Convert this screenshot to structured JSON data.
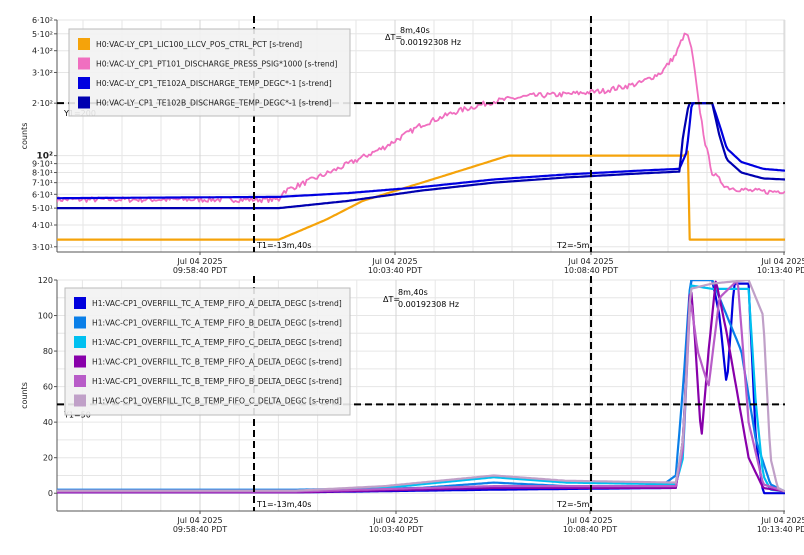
{
  "chart_data": [
    {
      "type": "line",
      "ylabel": "counts",
      "yscale": "log",
      "ylim": [
        28,
        600
      ],
      "grid": true,
      "legend_position": "top-left",
      "y_ticks": [
        {
          "v": 30,
          "label": "3·10¹"
        },
        {
          "v": 40,
          "label": "4·10¹"
        },
        {
          "v": 50,
          "label": "5·10¹"
        },
        {
          "v": 60,
          "label": "6·10¹"
        },
        {
          "v": 70,
          "label": "7·10¹"
        },
        {
          "v": 80,
          "label": "8·10¹"
        },
        {
          "v": 90,
          "label": "9·10¹"
        },
        {
          "v": 100,
          "label": "10²"
        },
        {
          "v": 200,
          "label": "2·10²"
        },
        {
          "v": 300,
          "label": "3·10²"
        },
        {
          "v": 400,
          "label": "4·10²"
        },
        {
          "v": 500,
          "label": "5·10²"
        },
        {
          "v": 600,
          "label": "6·10²"
        }
      ],
      "x_ticks": [
        {
          "label": "Jul 04 2025 09:58:40 PDT"
        },
        {
          "label": "Jul 04 2025 10:03:40 PDT"
        },
        {
          "label": "Jul 04 2025 10:08:40 PDT"
        },
        {
          "label": "Jul 04 2025 10:13:40 PDT"
        }
      ],
      "cursor_y": {
        "value": 200,
        "label": "Y1=200"
      },
      "cursor_t1_label": "T1=-13m,40s",
      "cursor_t2_label": "T2=-5m",
      "delta_label": "ΔT=",
      "delta_time": "8m,40s",
      "delta_freq": "0.00192308 Hz",
      "series": [
        {
          "name": "H0:VAC-LY_CP1_LIC100_LLCV_POS_CTRL_PCT [s-trend]",
          "color": "#f5a30a",
          "x": [
            0,
            0.305,
            0.33,
            0.37,
            0.42,
            0.52,
            0.62,
            0.75,
            0.862,
            0.867,
            0.868,
            1.0
          ],
          "y": [
            33,
            33,
            36.5,
            43,
            55,
            74,
            100,
            100,
            100,
            106,
            33,
            33
          ]
        },
        {
          "name": "H0:VAC-LY_CP1_PT101_DISCHARGE_PRESS_PSIG*1000 [s-trend]",
          "color": "#f06fc0",
          "noise": 0.035,
          "x": [
            0,
            0.305,
            0.31,
            0.38,
            0.45,
            0.5,
            0.55,
            0.6,
            0.65,
            0.7,
            0.75,
            0.8,
            0.83,
            0.85,
            0.86,
            0.865,
            0.87,
            0.875,
            0.88,
            0.89,
            0.9,
            0.92,
            0.95,
            0.98,
            1.0
          ],
          "y": [
            56,
            56,
            62,
            82,
            112,
            150,
            180,
            205,
            220,
            225,
            235,
            260,
            300,
            380,
            480,
            500,
            440,
            330,
            220,
            120,
            80,
            66,
            63,
            62,
            63
          ]
        },
        {
          "name": "H0:VAC-LY_CP1_TE102A_DISCHARGE_TEMP_DEGC*-1 [s-trend]",
          "color": "#0000e0",
          "x": [
            0,
            0.305,
            0.4,
            0.5,
            0.6,
            0.7,
            0.8,
            0.855,
            0.865,
            0.872,
            0.88,
            0.9,
            0.91,
            0.92,
            0.94,
            0.97,
            1.0
          ],
          "y": [
            57,
            58,
            61,
            66,
            73,
            78,
            82,
            84,
            105,
            200,
            200,
            200,
            150,
            110,
            92,
            84,
            82
          ]
        },
        {
          "name": "H0:VAC-LY_CP1_TE102B_DISCHARGE_TEMP_DEGC*-1 [s-trend]",
          "color": "#0000b0",
          "x": [
            0,
            0.305,
            0.4,
            0.5,
            0.6,
            0.7,
            0.8,
            0.855,
            0.86,
            0.868,
            0.9,
            0.91,
            0.92,
            0.94,
            0.97,
            1.0
          ],
          "y": [
            50,
            50,
            55,
            63,
            70,
            75,
            79,
            81,
            130,
            200,
            200,
            130,
            95,
            80,
            74,
            73
          ]
        }
      ]
    },
    {
      "type": "line",
      "ylabel": "counts",
      "ylim": [
        -10,
        120
      ],
      "grid": true,
      "legend_position": "top-left",
      "y_ticks": [
        {
          "v": 0,
          "label": "0"
        },
        {
          "v": 20,
          "label": "20"
        },
        {
          "v": 40,
          "label": "40"
        },
        {
          "v": 60,
          "label": "60"
        },
        {
          "v": 80,
          "label": "80"
        },
        {
          "v": 100,
          "label": "100"
        },
        {
          "v": 120,
          "label": "120"
        }
      ],
      "x_ticks": [
        {
          "label": "Jul 04 2025 09:58:40 PDT"
        },
        {
          "label": "Jul 04 2025 10:03:40 PDT"
        },
        {
          "label": "Jul 04 2025 10:08:40 PDT"
        },
        {
          "label": "Jul 04 2025 10:13:40 PDT"
        }
      ],
      "cursor_y": {
        "value": 50,
        "label": "Y1=50"
      },
      "cursor_t1_label": "T1=-13m,40s",
      "cursor_t2_label": "T2=-5m",
      "delta_label": "ΔT=",
      "delta_time": "8m,40s",
      "delta_freq": "0.00192308 Hz",
      "series": [
        {
          "name": "H1:VAC-CP1_OVERFILL_TC_A_TEMP_FIFO_A_DELTA_DEGC [s-trend]",
          "color": "#0000dd",
          "x": [
            0,
            0.33,
            0.6,
            0.85,
            0.86,
            0.87,
            0.9,
            0.91,
            0.92,
            0.93,
            0.95,
            0.96,
            0.97,
            1.0
          ],
          "y": [
            0.5,
            0.5,
            2,
            3,
            30,
            120,
            120,
            100,
            60,
            118,
            118,
            30,
            0,
            0
          ]
        },
        {
          "name": "H1:VAC-CP1_OVERFILL_TC_A_TEMP_FIFO_B_DELTA_DEGC [s-trend]",
          "color": "#0a7fe8",
          "x": [
            0,
            0.33,
            0.5,
            0.6,
            0.7,
            0.83,
            0.85,
            0.86,
            0.87,
            0.9,
            0.92,
            0.94,
            0.96,
            0.98,
            1.0
          ],
          "y": [
            2,
            2,
            3,
            6,
            4,
            4,
            10,
            60,
            120,
            120,
            100,
            80,
            30,
            5,
            1
          ]
        },
        {
          "name": "H1:VAC-CP1_OVERFILL_TC_A_TEMP_FIFO_C_DELTA_DEGC [s-trend]",
          "color": "#00c0f0",
          "x": [
            0,
            0.33,
            0.45,
            0.6,
            0.7,
            0.85,
            0.86,
            0.87,
            0.9,
            0.95,
            0.96,
            0.97,
            0.98,
            1.0
          ],
          "y": [
            1.5,
            1.5,
            3,
            9,
            6,
            5,
            20,
            117,
            115,
            115,
            50,
            10,
            2,
            1
          ]
        },
        {
          "name": "H1:VAC-CP1_OVERFILL_TC_B_TEMP_FIFO_A_DELTA_DEGC [s-trend]",
          "color": "#8800aa",
          "x": [
            0,
            0.33,
            0.6,
            0.85,
            0.86,
            0.87,
            0.875,
            0.885,
            0.895,
            0.905,
            0.92,
            0.95,
            0.97,
            1.0
          ],
          "y": [
            0.5,
            0.5,
            3,
            3,
            30,
            120,
            95,
            30,
            80,
            120,
            90,
            20,
            3,
            1
          ]
        },
        {
          "name": "H1:VAC-CP1_OVERFILL_TC_B_TEMP_FIFO_B_DELTA_DEGC [s-trend]",
          "color": "#b85cc8",
          "x": [
            0,
            0.33,
            0.6,
            0.85,
            0.86,
            0.87,
            0.88,
            0.895,
            0.91,
            0.935,
            0.95,
            0.97,
            1.0
          ],
          "y": [
            1,
            1,
            4,
            4,
            25,
            110,
            80,
            60,
            110,
            120,
            40,
            5,
            1
          ]
        },
        {
          "name": "H1:VAC-CP1_OVERFILL_TC_B_TEMP_FIFO_C_DELTA_DEGC [s-trend]",
          "color": "#c0a0c8",
          "x": [
            0,
            0.33,
            0.45,
            0.6,
            0.7,
            0.85,
            0.86,
            0.87,
            0.9,
            0.95,
            0.97,
            0.98,
            0.99,
            1.0
          ],
          "y": [
            1.5,
            1.5,
            4,
            10,
            7,
            6,
            30,
            115,
            118,
            120,
            100,
            20,
            3,
            1
          ]
        }
      ]
    }
  ]
}
